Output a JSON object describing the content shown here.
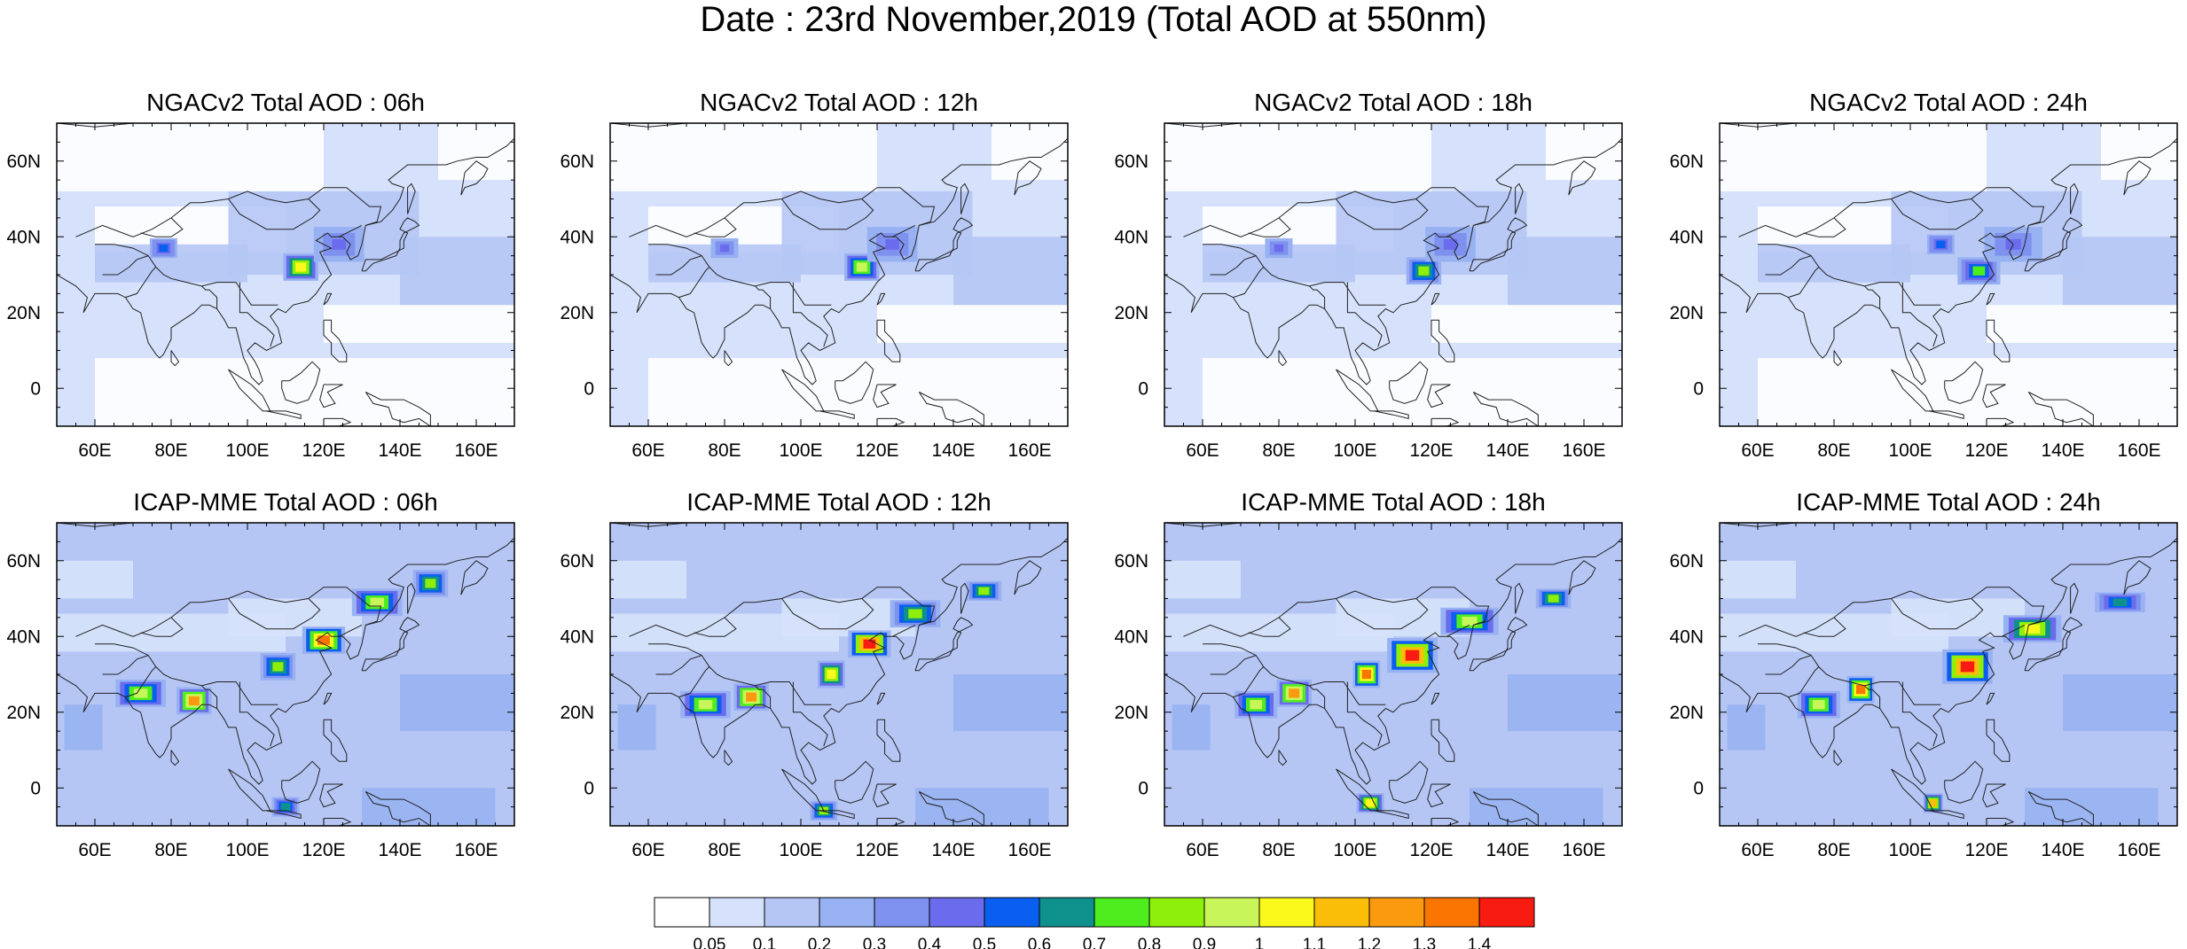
{
  "title": "Date : 23rd November,2019 (Total AOD at 550nm)",
  "panels": [
    {
      "title": "NGACv2 Total AOD : 06h",
      "model": "NGACv2",
      "hour": "06h",
      "row": 0,
      "col": 0
    },
    {
      "title": "NGACv2 Total AOD : 12h",
      "model": "NGACv2",
      "hour": "12h",
      "row": 0,
      "col": 1
    },
    {
      "title": "NGACv2 Total AOD : 18h",
      "model": "NGACv2",
      "hour": "18h",
      "row": 0,
      "col": 2
    },
    {
      "title": "NGACv2 Total AOD : 24h",
      "model": "NGACv2",
      "hour": "24h",
      "row": 0,
      "col": 3
    },
    {
      "title": "ICAP-MME Total AOD : 06h",
      "model": "ICAP-MME",
      "hour": "06h",
      "row": 1,
      "col": 0
    },
    {
      "title": "ICAP-MME Total AOD : 12h",
      "model": "ICAP-MME",
      "hour": "12h",
      "row": 1,
      "col": 1
    },
    {
      "title": "ICAP-MME Total AOD : 18h",
      "model": "ICAP-MME",
      "hour": "18h",
      "row": 1,
      "col": 2
    },
    {
      "title": "ICAP-MME Total AOD : 24h",
      "model": "ICAP-MME",
      "hour": "24h",
      "row": 1,
      "col": 3
    }
  ],
  "map_extent": {
    "lon_min": 50,
    "lon_max": 170,
    "lat_min": -10,
    "lat_max": 70
  },
  "lon_ticks": [
    60,
    80,
    100,
    120,
    140,
    160
  ],
  "lon_tick_labels": [
    "60E",
    "80E",
    "100E",
    "120E",
    "140E",
    "160E"
  ],
  "lat_ticks": [
    0,
    20,
    40,
    60
  ],
  "lat_tick_labels": [
    "0",
    "20N",
    "40N",
    "60N"
  ],
  "colorbar": {
    "labels": [
      "0.05",
      "0.1",
      "0.2",
      "0.3",
      "0.4",
      "0.5",
      "0.6",
      "0.7",
      "0.8",
      "0.9",
      "1",
      "1.1",
      "1.2",
      "1.3",
      "1.4"
    ],
    "colors": [
      "#ffffff",
      "#d6e2fb",
      "#b5c6f5",
      "#98b1f2",
      "#7f91ef",
      "#6b6ced",
      "#0b5ff0",
      "#0e918d",
      "#4ded1e",
      "#8ef00a",
      "#c8f65a",
      "#fbf91c",
      "#fbbe08",
      "#fb9a0e",
      "#fb7503",
      "#f71b11"
    ]
  },
  "hotspots": {
    "NGACv2": {
      "06h": [
        {
          "lon": 114,
          "lat": 32,
          "aod": 1.0,
          "rl": 4,
          "rt": 3
        },
        {
          "lon": 124,
          "lat": 38,
          "aod": 0.4,
          "rl": 6,
          "rt": 4
        },
        {
          "lon": 78,
          "lat": 37,
          "aod": 0.5,
          "rl": 3,
          "rt": 2
        }
      ],
      "12h": [
        {
          "lon": 116,
          "lat": 32,
          "aod": 0.9,
          "rl": 4,
          "rt": 3
        },
        {
          "lon": 124,
          "lat": 38,
          "aod": 0.4,
          "rl": 6,
          "rt": 4
        },
        {
          "lon": 80,
          "lat": 37,
          "aod": 0.4,
          "rl": 3,
          "rt": 2
        }
      ],
      "18h": [
        {
          "lon": 118,
          "lat": 31,
          "aod": 0.8,
          "rl": 4,
          "rt": 3
        },
        {
          "lon": 125,
          "lat": 38,
          "aod": 0.4,
          "rl": 6,
          "rt": 4
        },
        {
          "lon": 80,
          "lat": 37,
          "aod": 0.4,
          "rl": 3,
          "rt": 2
        }
      ],
      "24h": [
        {
          "lon": 118,
          "lat": 31,
          "aod": 0.7,
          "rl": 5,
          "rt": 3
        },
        {
          "lon": 127,
          "lat": 38,
          "aod": 0.4,
          "rl": 7,
          "rt": 4
        },
        {
          "lon": 108,
          "lat": 38,
          "aod": 0.5,
          "rl": 3,
          "rt": 2
        }
      ]
    },
    "ICAP-MME": {
      "06h": [
        {
          "lon": 120,
          "lat": 39,
          "aod": 1.3,
          "rl": 5,
          "rt": 3
        },
        {
          "lon": 134,
          "lat": 49,
          "aod": 0.9,
          "rl": 6,
          "rt": 3
        },
        {
          "lon": 148,
          "lat": 54,
          "aod": 0.8,
          "rl": 4,
          "rt": 3
        },
        {
          "lon": 72,
          "lat": 25,
          "aod": 0.9,
          "rl": 6,
          "rt": 3
        },
        {
          "lon": 86,
          "lat": 23,
          "aod": 1.2,
          "rl": 4,
          "rt": 3
        },
        {
          "lon": 108,
          "lat": 32,
          "aod": 0.8,
          "rl": 4,
          "rt": 3
        },
        {
          "lon": 110,
          "lat": -5,
          "aod": 0.6,
          "rl": 3,
          "rt": 2
        }
      ],
      "12h": [
        {
          "lon": 118,
          "lat": 38,
          "aod": 1.4,
          "rl": 5,
          "rt": 3
        },
        {
          "lon": 130,
          "lat": 46,
          "aod": 0.8,
          "rl": 6,
          "rt": 3
        },
        {
          "lon": 148,
          "lat": 52,
          "aod": 0.8,
          "rl": 4,
          "rt": 2
        },
        {
          "lon": 75,
          "lat": 22,
          "aod": 0.9,
          "rl": 6,
          "rt": 3
        },
        {
          "lon": 87,
          "lat": 24,
          "aod": 1.2,
          "rl": 4,
          "rt": 3
        },
        {
          "lon": 108,
          "lat": 30,
          "aod": 1.0,
          "rl": 3,
          "rt": 3
        },
        {
          "lon": 106,
          "lat": -6,
          "aod": 0.8,
          "rl": 3,
          "rt": 2
        }
      ],
      "18h": [
        {
          "lon": 115,
          "lat": 35,
          "aod": 1.4,
          "rl": 6,
          "rt": 4
        },
        {
          "lon": 130,
          "lat": 44,
          "aod": 0.9,
          "rl": 7,
          "rt": 3
        },
        {
          "lon": 152,
          "lat": 50,
          "aod": 0.8,
          "rl": 4,
          "rt": 2
        },
        {
          "lon": 103,
          "lat": 30,
          "aod": 1.3,
          "rl": 3,
          "rt": 3
        },
        {
          "lon": 84,
          "lat": 25,
          "aod": 1.2,
          "rl": 4,
          "rt": 3
        },
        {
          "lon": 74,
          "lat": 22,
          "aod": 0.9,
          "rl": 5,
          "rt": 3
        },
        {
          "lon": 104,
          "lat": -4,
          "aod": 1.0,
          "rl": 3,
          "rt": 2
        }
      ],
      "24h": [
        {
          "lon": 115,
          "lat": 32,
          "aod": 1.4,
          "rl": 6,
          "rt": 4
        },
        {
          "lon": 132,
          "lat": 42,
          "aod": 1.0,
          "rl": 7,
          "rt": 3
        },
        {
          "lon": 155,
          "lat": 49,
          "aod": 0.6,
          "rl": 6,
          "rt": 2
        },
        {
          "lon": 87,
          "lat": 26,
          "aod": 1.3,
          "rl": 3,
          "rt": 3
        },
        {
          "lon": 76,
          "lat": 22,
          "aod": 0.9,
          "rl": 5,
          "rt": 3
        },
        {
          "lon": 106,
          "lat": -4,
          "aod": 1.1,
          "rl": 2,
          "rt": 2
        }
      ]
    }
  }
}
